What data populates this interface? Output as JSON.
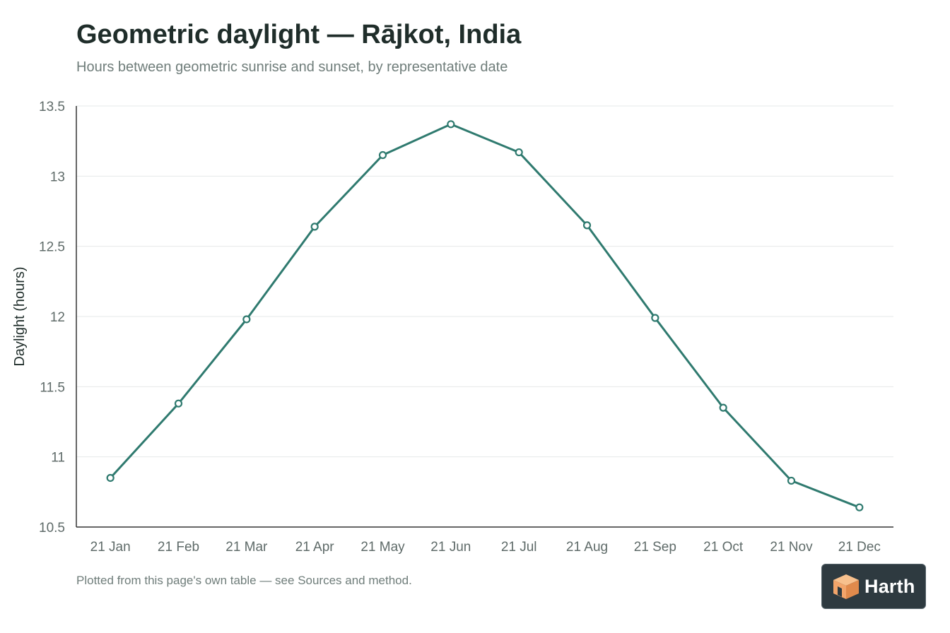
{
  "chart_data": {
    "type": "line",
    "title": "Geometric daylight — Rājkot, India",
    "subtitle": "Hours between geometric sunrise and sunset, by representative date",
    "xlabel": "",
    "ylabel": "Daylight (hours)",
    "categories": [
      "21 Jan",
      "21 Feb",
      "21 Mar",
      "21 Apr",
      "21 May",
      "21 Jun",
      "21 Jul",
      "21 Aug",
      "21 Sep",
      "21 Oct",
      "21 Nov",
      "21 Dec"
    ],
    "series": [
      {
        "values": [
          10.85,
          11.38,
          11.98,
          12.64,
          13.15,
          13.37,
          13.17,
          12.65,
          11.99,
          11.35,
          10.83,
          10.64
        ]
      }
    ],
    "ylim": [
      10.5,
      13.5
    ],
    "yticks": [
      "10.5",
      "11",
      "11.5",
      "12",
      "12.5",
      "13",
      "13.5"
    ],
    "grid": true,
    "line_color": "#2f7a6f",
    "footnote": "Plotted from this page's own table — see Sources and method."
  },
  "badge": {
    "label": "Harth",
    "logo_icon": "cube-logo-icon",
    "background": "#2e3a40",
    "logo_color": "#f2a46a"
  }
}
